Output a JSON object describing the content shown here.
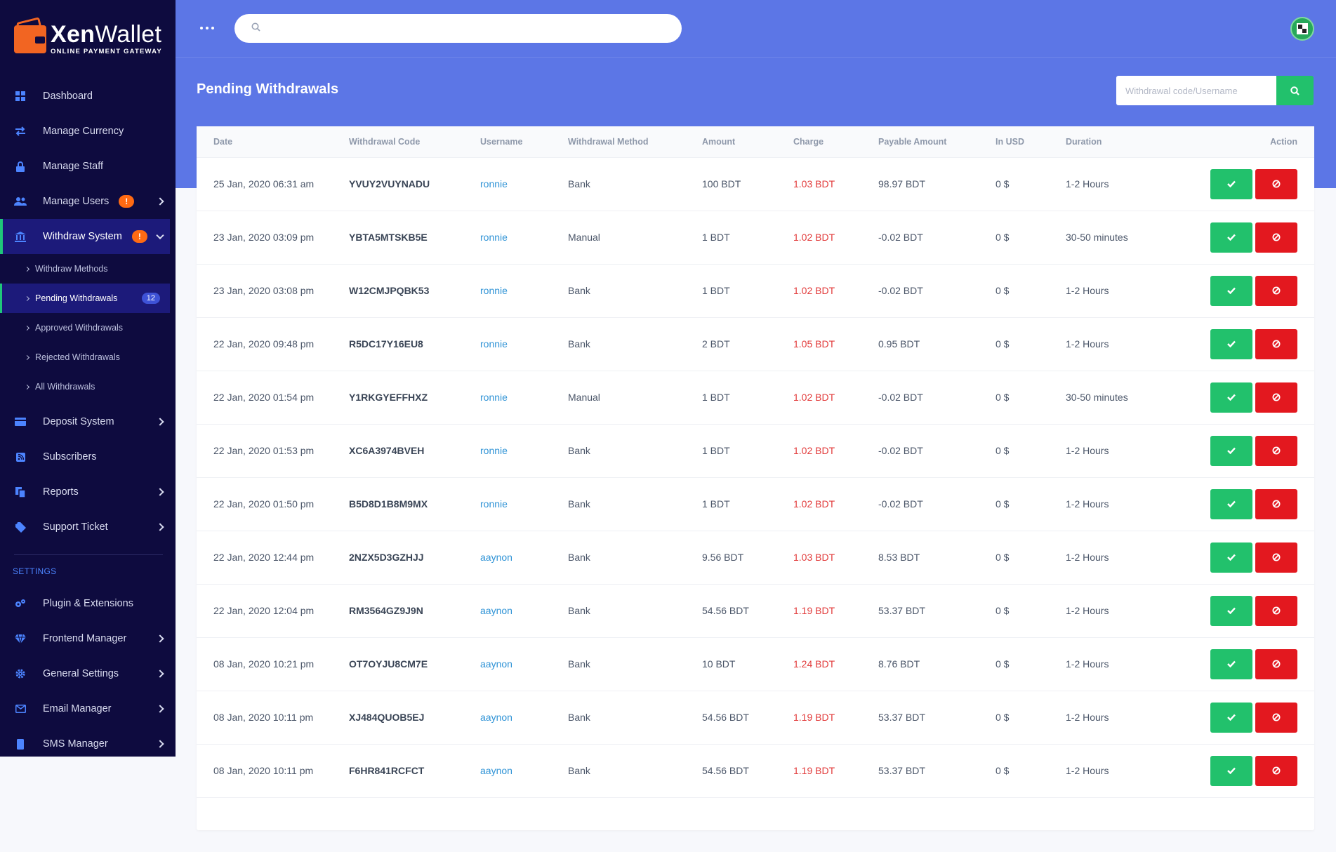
{
  "brand": {
    "name_bold": "Xen",
    "name_light": "Wallet",
    "tagline": "ONLINE PAYMENT GATEWAY"
  },
  "sidebar": {
    "items": [
      {
        "label": "Dashboard",
        "icon": "dashboard-icon"
      },
      {
        "label": "Manage Currency",
        "icon": "exchange-icon"
      },
      {
        "label": "Manage Staff",
        "icon": "lock-icon"
      },
      {
        "label": "Manage Users",
        "icon": "users-icon",
        "badge": "!"
      },
      {
        "label": "Withdraw System",
        "icon": "bank-icon",
        "badge": "!"
      }
    ],
    "submenu": [
      {
        "label": "Withdraw Methods"
      },
      {
        "label": "Pending Withdrawals",
        "count": "12"
      },
      {
        "label": "Approved Withdrawals"
      },
      {
        "label": "Rejected Withdrawals"
      },
      {
        "label": "All Withdrawals"
      }
    ],
    "items2": [
      {
        "label": "Deposit System"
      },
      {
        "label": "Subscribers"
      },
      {
        "label": "Reports"
      },
      {
        "label": "Support Ticket"
      }
    ],
    "settings_title": "SETTINGS",
    "settings": [
      {
        "label": "Plugin & Extensions"
      },
      {
        "label": "Frontend Manager"
      },
      {
        "label": "General Settings"
      },
      {
        "label": "Email Manager"
      },
      {
        "label": "SMS Manager"
      }
    ]
  },
  "header": {
    "search_placeholder": ""
  },
  "page": {
    "title": "Pending Withdrawals",
    "search_placeholder": "Withdrawal code/Username"
  },
  "table": {
    "columns": [
      "Date",
      "Withdrawal Code",
      "Username",
      "Withdrawal Method",
      "Amount",
      "Charge",
      "Payable Amount",
      "In USD",
      "Duration",
      "Action"
    ],
    "rows": [
      {
        "date": "25 Jan, 2020 06:31 am",
        "code": "YVUY2VUYNADU",
        "user": "ronnie",
        "method": "Bank",
        "amount": "100 BDT",
        "charge": "1.03 BDT",
        "payable": "98.97 BDT",
        "usd": "0 $",
        "duration": "1-2 Hours"
      },
      {
        "date": "23 Jan, 2020 03:09 pm",
        "code": "YBTA5MTSKB5E",
        "user": "ronnie",
        "method": "Manual",
        "amount": "1 BDT",
        "charge": "1.02 BDT",
        "payable": "-0.02 BDT",
        "usd": "0 $",
        "duration": "30-50 minutes"
      },
      {
        "date": "23 Jan, 2020 03:08 pm",
        "code": "W12CMJPQBK53",
        "user": "ronnie",
        "method": "Bank",
        "amount": "1 BDT",
        "charge": "1.02 BDT",
        "payable": "-0.02 BDT",
        "usd": "0 $",
        "duration": "1-2 Hours"
      },
      {
        "date": "22 Jan, 2020 09:48 pm",
        "code": "R5DC17Y16EU8",
        "user": "ronnie",
        "method": "Bank",
        "amount": "2 BDT",
        "charge": "1.05 BDT",
        "payable": "0.95 BDT",
        "usd": "0 $",
        "duration": "1-2 Hours"
      },
      {
        "date": "22 Jan, 2020 01:54 pm",
        "code": "Y1RKGYEFFHXZ",
        "user": "ronnie",
        "method": "Manual",
        "amount": "1 BDT",
        "charge": "1.02 BDT",
        "payable": "-0.02 BDT",
        "usd": "0 $",
        "duration": "30-50 minutes"
      },
      {
        "date": "22 Jan, 2020 01:53 pm",
        "code": "XC6A3974BVEH",
        "user": "ronnie",
        "method": "Bank",
        "amount": "1 BDT",
        "charge": "1.02 BDT",
        "payable": "-0.02 BDT",
        "usd": "0 $",
        "duration": "1-2 Hours"
      },
      {
        "date": "22 Jan, 2020 01:50 pm",
        "code": "B5D8D1B8M9MX",
        "user": "ronnie",
        "method": "Bank",
        "amount": "1 BDT",
        "charge": "1.02 BDT",
        "payable": "-0.02 BDT",
        "usd": "0 $",
        "duration": "1-2 Hours"
      },
      {
        "date": "22 Jan, 2020 12:44 pm",
        "code": "2NZX5D3GZHJJ",
        "user": "aaynon",
        "method": "Bank",
        "amount": "9.56 BDT",
        "charge": "1.03 BDT",
        "payable": "8.53 BDT",
        "usd": "0 $",
        "duration": "1-2 Hours"
      },
      {
        "date": "22 Jan, 2020 12:04 pm",
        "code": "RM3564GZ9J9N",
        "user": "aaynon",
        "method": "Bank",
        "amount": "54.56 BDT",
        "charge": "1.19 BDT",
        "payable": "53.37 BDT",
        "usd": "0 $",
        "duration": "1-2 Hours"
      },
      {
        "date": "08 Jan, 2020 10:21 pm",
        "code": "OT7OYJU8CM7E",
        "user": "aaynon",
        "method": "Bank",
        "amount": "10 BDT",
        "charge": "1.24 BDT",
        "payable": "8.76 BDT",
        "usd": "0 $",
        "duration": "1-2 Hours"
      },
      {
        "date": "08 Jan, 2020 10:11 pm",
        "code": "XJ484QUOB5EJ",
        "user": "aaynon",
        "method": "Bank",
        "amount": "54.56 BDT",
        "charge": "1.19 BDT",
        "payable": "53.37 BDT",
        "usd": "0 $",
        "duration": "1-2 Hours"
      },
      {
        "date": "08 Jan, 2020 10:11 pm",
        "code": "F6HR841RCFCT",
        "user": "aaynon",
        "method": "Bank",
        "amount": "54.56 BDT",
        "charge": "1.19 BDT",
        "payable": "53.37 BDT",
        "usd": "0 $",
        "duration": "1-2 Hours"
      }
    ]
  },
  "colors": {
    "sidebar": "#0e0b3f",
    "header": "#5c76e6",
    "approve": "#22c16c",
    "reject": "#e3181f",
    "charge": "#e23b3b",
    "username": "#2f93d6",
    "accent": "#1fc77a"
  }
}
